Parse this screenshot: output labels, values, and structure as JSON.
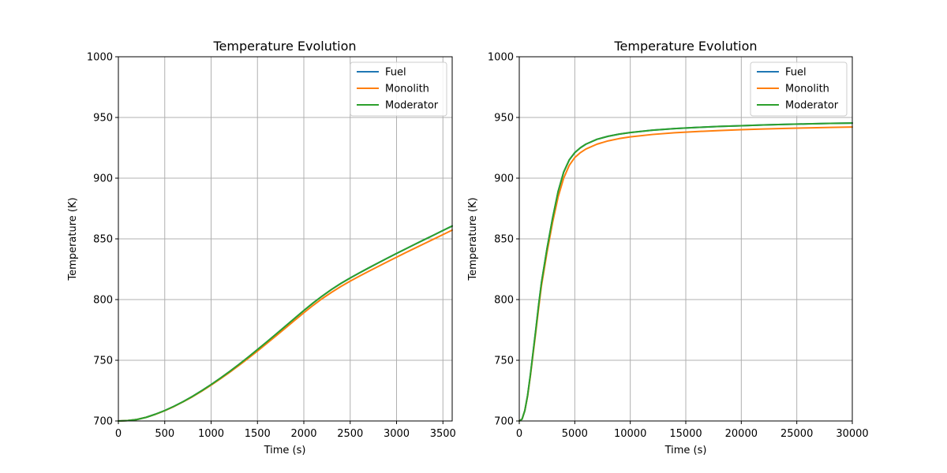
{
  "chart_data": [
    {
      "type": "line",
      "title": "Temperature Evolution",
      "xlabel": "Time (s)",
      "ylabel": "Temperature (K)",
      "xlim": [
        0,
        3600
      ],
      "ylim": [
        700,
        1000
      ],
      "xticks": [
        0,
        500,
        1000,
        1500,
        2000,
        2500,
        3000,
        3500
      ],
      "yticks": [
        700,
        750,
        800,
        850,
        900,
        950,
        1000
      ],
      "grid": true,
      "legend_position": "upper right",
      "series": [
        {
          "name": "Fuel",
          "color": "#1f77b4",
          "x": [
            0,
            100,
            200,
            300,
            400,
            500,
            600,
            700,
            800,
            900,
            1000,
            1100,
            1200,
            1300,
            1400,
            1500,
            1600,
            1700,
            1800,
            1900,
            2000,
            2100,
            2200,
            2300,
            2400,
            2500,
            2600,
            2700,
            2800,
            2900,
            3000,
            3100,
            3200,
            3300,
            3400,
            3500,
            3600
          ],
          "y": [
            700,
            700.3,
            701.2,
            703.0,
            705.6,
            708.6,
            712.1,
            716.0,
            720.3,
            725.0,
            730.0,
            735.3,
            740.8,
            746.6,
            752.6,
            758.8,
            765.1,
            771.5,
            778.0,
            784.5,
            791.0,
            797.2,
            803.0,
            808.4,
            813.3,
            817.8,
            822.0,
            826.1,
            830.1,
            834.1,
            838.0,
            841.8,
            845.6,
            849.4,
            853.1,
            856.9,
            860.6
          ]
        },
        {
          "name": "Monolith",
          "color": "#ff7f0e",
          "x": [
            0,
            100,
            200,
            300,
            400,
            500,
            600,
            700,
            800,
            900,
            1000,
            1100,
            1200,
            1300,
            1400,
            1500,
            1600,
            1700,
            1800,
            1900,
            2000,
            2100,
            2200,
            2300,
            2400,
            2500,
            2600,
            2700,
            2800,
            2900,
            3000,
            3100,
            3200,
            3300,
            3400,
            3500,
            3600
          ],
          "y": [
            700,
            700.3,
            701.2,
            703.0,
            705.5,
            708.5,
            711.9,
            715.8,
            720.0,
            724.6,
            729.5,
            734.7,
            740.1,
            745.7,
            751.6,
            757.6,
            763.8,
            770.1,
            776.4,
            782.8,
            789.1,
            795.2,
            800.9,
            806.0,
            810.8,
            815.2,
            819.3,
            823.3,
            827.2,
            831.1,
            834.9,
            838.7,
            842.4,
            846.1,
            849.8,
            853.5,
            857.2
          ]
        },
        {
          "name": "Moderator",
          "color": "#2ca02c",
          "x": [
            0,
            100,
            200,
            300,
            400,
            500,
            600,
            700,
            800,
            900,
            1000,
            1100,
            1200,
            1300,
            1400,
            1500,
            1600,
            1700,
            1800,
            1900,
            2000,
            2100,
            2200,
            2300,
            2400,
            2500,
            2600,
            2700,
            2800,
            2900,
            3000,
            3100,
            3200,
            3300,
            3400,
            3500,
            3600
          ],
          "y": [
            700,
            700.3,
            701.2,
            703.0,
            705.6,
            708.6,
            712.1,
            716.0,
            720.3,
            725.0,
            730.0,
            735.3,
            740.8,
            746.6,
            752.6,
            758.8,
            765.1,
            771.5,
            778.0,
            784.5,
            791.0,
            797.2,
            803.0,
            808.4,
            813.3,
            817.8,
            822.0,
            826.1,
            830.1,
            834.1,
            838.0,
            841.8,
            845.6,
            849.4,
            853.1,
            856.9,
            860.6
          ]
        }
      ]
    },
    {
      "type": "line",
      "title": "Temperature Evolution",
      "xlabel": "Time (s)",
      "ylabel": "Temperature (K)",
      "xlim": [
        0,
        30000
      ],
      "ylim": [
        700,
        1000
      ],
      "xticks": [
        0,
        5000,
        10000,
        15000,
        20000,
        25000,
        30000
      ],
      "yticks": [
        700,
        750,
        800,
        850,
        900,
        950,
        1000
      ],
      "grid": true,
      "legend_position": "upper right",
      "series": [
        {
          "name": "Fuel",
          "color": "#1f77b4",
          "x": [
            0,
            250,
            500,
            750,
            1000,
            1250,
            1500,
            1750,
            2000,
            2500,
            3000,
            3500,
            4000,
            4500,
            5000,
            5500,
            6000,
            7000,
            8000,
            9000,
            10000,
            12000,
            14000,
            16000,
            18000,
            20000,
            22000,
            24000,
            26000,
            28000,
            30000
          ],
          "y": [
            700,
            701.5,
            708.6,
            721.0,
            738.0,
            757.0,
            776.0,
            796.0,
            814.0,
            842.0,
            867.0,
            889.0,
            905.0,
            915.0,
            921.0,
            925.0,
            928.0,
            932.0,
            934.5,
            936.3,
            937.6,
            939.5,
            940.8,
            941.8,
            942.6,
            943.2,
            943.8,
            944.3,
            944.7,
            945.1,
            945.4
          ]
        },
        {
          "name": "Monolith",
          "color": "#ff7f0e",
          "x": [
            0,
            250,
            500,
            750,
            1000,
            1250,
            1500,
            1750,
            2000,
            2500,
            3000,
            3500,
            4000,
            4500,
            5000,
            5500,
            6000,
            7000,
            8000,
            9000,
            10000,
            12000,
            14000,
            16000,
            18000,
            20000,
            22000,
            24000,
            26000,
            28000,
            30000
          ],
          "y": [
            700,
            701.5,
            708.5,
            720.5,
            737.0,
            755.5,
            774.0,
            793.5,
            811.5,
            839.0,
            863.5,
            884.5,
            900.0,
            910.5,
            917.0,
            921.0,
            924.0,
            928.0,
            930.7,
            932.6,
            934.0,
            936.0,
            937.4,
            938.4,
            939.2,
            939.9,
            940.5,
            941.0,
            941.4,
            941.8,
            942.1
          ]
        },
        {
          "name": "Moderator",
          "color": "#2ca02c",
          "x": [
            0,
            250,
            500,
            750,
            1000,
            1250,
            1500,
            1750,
            2000,
            2500,
            3000,
            3500,
            4000,
            4500,
            5000,
            5500,
            6000,
            7000,
            8000,
            9000,
            10000,
            12000,
            14000,
            16000,
            18000,
            20000,
            22000,
            24000,
            26000,
            28000,
            30000
          ],
          "y": [
            700,
            701.5,
            708.6,
            721.0,
            738.0,
            757.0,
            776.0,
            796.0,
            814.0,
            842.0,
            867.0,
            889.0,
            905.0,
            915.0,
            921.0,
            925.0,
            928.0,
            932.0,
            934.5,
            936.3,
            937.6,
            939.5,
            940.8,
            941.8,
            942.6,
            943.2,
            943.8,
            944.3,
            944.7,
            945.1,
            945.4
          ]
        }
      ]
    }
  ]
}
